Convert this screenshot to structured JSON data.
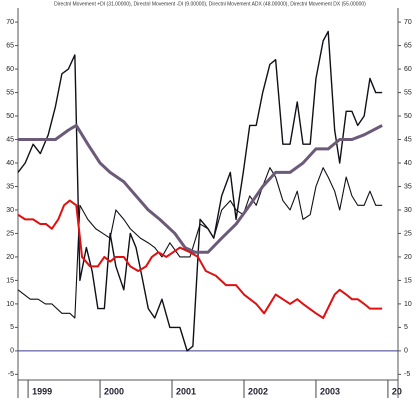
{
  "chart_data": {
    "type": "line",
    "title": "Directnl Movement +DI (31.00000), Directnl Movement -DI (9.00000), Directnl Movement ADX (48.00000), Directnl Movement DX (55.00000)",
    "xlim": [
      1998.86,
      2004.14
    ],
    "xticks": [
      1999,
      2000,
      2001,
      2002,
      2003,
      {
        "value": 2004,
        "label": "20"
      }
    ],
    "ylim": [
      -6.2,
      73
    ],
    "yticks": [
      -5,
      0,
      5,
      10,
      15,
      20,
      25,
      30,
      35,
      40,
      45,
      50,
      55,
      60,
      65,
      70
    ],
    "zero_line": true,
    "zero_line_color": "#3a3a90",
    "series": [
      {
        "color": "#101018",
        "width": 1.4,
        "x": [
          1998.86,
          1998.96,
          1999.07,
          1999.17,
          1999.28,
          1999.38,
          1999.47,
          1999.56,
          1999.65,
          1999.72,
          1999.81,
          1999.89,
          1999.97,
          2000.06,
          2000.14,
          2000.22,
          2000.33,
          2000.42,
          2000.5,
          2000.58,
          2000.67,
          2000.76,
          2000.86,
          2000.97,
          2001.11,
          2001.21,
          2001.29,
          2001.39,
          2001.5,
          2001.58,
          2001.69,
          2001.81,
          2001.89,
          2001.99,
          2002.08,
          2002.17,
          2002.26,
          2002.36,
          2002.44,
          2002.54,
          2002.64,
          2002.74,
          2002.82,
          2002.92,
          2003,
          2003.1,
          2003.17,
          2003.26,
          2003.33,
          2003.42,
          2003.5,
          2003.58,
          2003.67,
          2003.75,
          2003.83,
          2003.92
        ],
        "values": [
          38,
          40,
          44,
          42,
          46,
          52,
          59,
          60,
          63,
          15,
          22,
          17,
          9,
          9,
          25,
          18,
          13,
          25,
          22,
          16,
          9,
          7,
          11,
          5,
          5,
          0,
          1,
          28,
          26,
          24,
          33,
          38,
          28,
          38,
          48,
          48,
          55,
          61,
          62,
          44,
          44,
          53,
          44,
          44,
          58,
          66,
          68,
          47,
          40,
          51,
          51,
          48,
          50,
          58,
          55,
          55
        ]
      },
      {
        "color": "#101018",
        "width": 1.1,
        "x": [
          1998.86,
          1999.03,
          1999.14,
          1999.24,
          1999.33,
          1999.47,
          1999.58,
          1999.65,
          1999.72,
          1999.83,
          1999.94,
          2000.04,
          2000.14,
          2000.22,
          2000.33,
          2000.42,
          2000.56,
          2000.67,
          2000.76,
          2000.86,
          2000.97,
          2001.11,
          2001.25,
          2001.39,
          2001.5,
          2001.58,
          2001.69,
          2001.81,
          2001.89,
          2001.99,
          2002.08,
          2002.17,
          2002.26,
          2002.36,
          2002.44,
          2002.54,
          2002.64,
          2002.74,
          2002.82,
          2002.92,
          2003,
          2003.1,
          2003.17,
          2003.26,
          2003.33,
          2003.42,
          2003.5,
          2003.58,
          2003.67,
          2003.75,
          2003.83,
          2003.92
        ],
        "values": [
          13,
          11,
          11,
          10,
          10,
          8,
          8,
          7,
          31,
          28,
          26,
          25,
          24,
          30,
          28,
          26,
          24,
          23,
          22,
          20,
          23,
          20,
          20,
          27,
          26,
          24,
          30,
          32,
          30,
          29,
          33,
          31,
          35,
          39,
          37,
          32,
          30,
          34,
          28,
          29,
          35,
          39,
          37,
          34,
          30,
          37,
          33,
          31,
          31,
          34,
          31,
          31
        ]
      },
      {
        "color": "#6b5a78",
        "width": 3,
        "x": [
          1998.86,
          1999.38,
          1999.56,
          1999.67,
          1999.83,
          2000,
          2000.14,
          2000.33,
          2000.5,
          2000.67,
          2000.83,
          2001.04,
          2001.18,
          2001.32,
          2001.5,
          2001.69,
          2001.89,
          2002.08,
          2002.26,
          2002.44,
          2002.64,
          2002.82,
          2003,
          2003.17,
          2003.33,
          2003.5,
          2003.67,
          2003.92
        ],
        "values": [
          45,
          45,
          47,
          48,
          44,
          40,
          38,
          36,
          33,
          30,
          28,
          25,
          22,
          21,
          21,
          24,
          27,
          31,
          35,
          38,
          38,
          40,
          43,
          43,
          45,
          45,
          46,
          48
        ]
      },
      {
        "color": "#e01010",
        "width": 2,
        "x": [
          1998.86,
          1998.96,
          1999.07,
          1999.17,
          1999.25,
          1999.33,
          1999.42,
          1999.5,
          1999.58,
          1999.67,
          1999.75,
          1999.86,
          1999.97,
          2000.06,
          2000.14,
          2000.22,
          2000.33,
          2000.42,
          2000.53,
          2000.64,
          2000.72,
          2000.81,
          2000.92,
          2001.11,
          2001.25,
          2001.36,
          2001.47,
          2001.61,
          2001.75,
          2001.89,
          2002,
          2002.17,
          2002.28,
          2002.44,
          2002.54,
          2002.64,
          2002.74,
          2002.82,
          2003,
          2003.1,
          2003.26,
          2003.33,
          2003.42,
          2003.5,
          2003.58,
          2003.67,
          2003.75,
          2003.92
        ],
        "values": [
          29,
          28,
          28,
          27,
          27,
          26,
          28,
          31,
          32,
          31,
          20,
          18,
          18,
          20,
          19,
          20,
          20,
          18,
          17,
          18,
          20,
          21,
          20,
          22,
          21,
          20,
          17,
          16,
          14,
          14,
          12,
          10,
          8,
          12,
          11,
          10,
          11,
          10,
          8,
          7,
          12,
          13,
          12,
          11,
          11,
          10,
          9,
          9
        ]
      }
    ]
  }
}
